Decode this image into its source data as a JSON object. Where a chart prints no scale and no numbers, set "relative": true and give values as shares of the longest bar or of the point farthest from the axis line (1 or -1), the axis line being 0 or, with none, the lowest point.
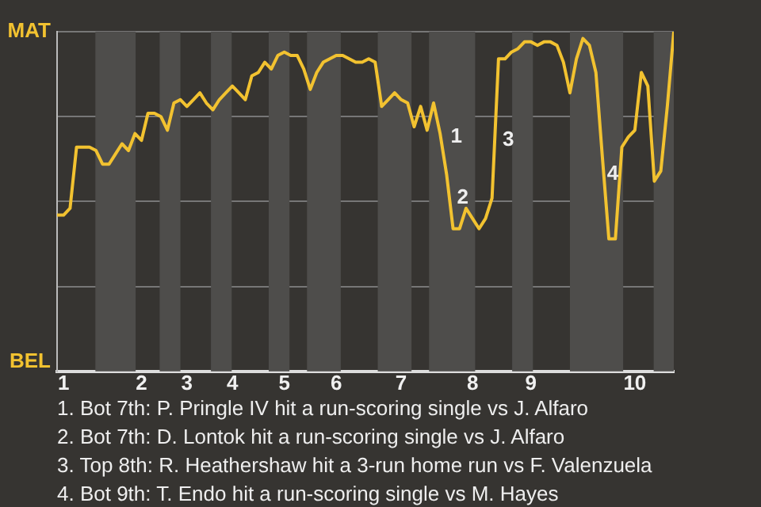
{
  "chart_data": {
    "type": "line",
    "relative": true,
    "categories": [
      null,
      "1",
      null,
      null,
      null,
      null,
      null,
      null,
      null,
      null,
      null,
      null,
      null,
      "2",
      null,
      null,
      null,
      null,
      null,
      null,
      "3",
      null,
      null,
      null,
      null,
      null,
      null,
      "4",
      null,
      null,
      null,
      null,
      null,
      null,
      null,
      "5",
      null,
      null,
      null,
      null,
      null,
      null,
      null,
      "6",
      null,
      null,
      null,
      null,
      null,
      null,
      null,
      null,
      null,
      "7",
      null,
      null,
      null,
      null,
      null,
      null,
      null,
      null,
      null,
      null,
      "8",
      null,
      null,
      null,
      null,
      null,
      null,
      null,
      null,
      "9",
      null,
      null,
      null,
      null,
      null,
      null,
      null,
      null,
      null,
      null,
      null,
      null,
      null,
      null,
      null,
      "10",
      null,
      null,
      null,
      null,
      null,
      null
    ],
    "series": [
      {
        "color": "#f2c230",
        "values": [
          0.46,
          0.46,
          0.48,
          0.66,
          0.66,
          0.66,
          0.65,
          0.61,
          0.61,
          0.64,
          0.67,
          0.65,
          0.7,
          0.68,
          0.76,
          0.76,
          0.75,
          0.71,
          0.79,
          0.8,
          0.78,
          0.8,
          0.82,
          0.79,
          0.77,
          0.8,
          0.82,
          0.84,
          0.82,
          0.8,
          0.87,
          0.88,
          0.91,
          0.89,
          0.93,
          0.94,
          0.93,
          0.93,
          0.89,
          0.83,
          0.88,
          0.91,
          0.92,
          0.93,
          0.93,
          0.92,
          0.91,
          0.91,
          0.92,
          0.91,
          0.78,
          0.8,
          0.82,
          0.8,
          0.79,
          0.72,
          0.78,
          0.71,
          0.79,
          0.7,
          0.58,
          0.42,
          0.42,
          0.48,
          0.45,
          0.42,
          0.45,
          0.51,
          0.92,
          0.92,
          0.94,
          0.95,
          0.97,
          0.97,
          0.96,
          0.97,
          0.97,
          0.96,
          0.91,
          0.82,
          0.92,
          0.98,
          0.96,
          0.88,
          0.63,
          0.39,
          0.39,
          0.66,
          0.69,
          0.71,
          0.88,
          0.84,
          0.56,
          0.59,
          0.78,
          1.0
        ]
      }
    ],
    "grid": "y",
    "marker": "none",
    "legend": false,
    "annotations": [
      "MAT",
      "BEL",
      "1",
      "2",
      "3",
      "4",
      "1. Bot 7th: P. Pringle IV hit a run-scoring single vs J. Alfaro",
      "2. Bot 7th: D. Lontok hit a run-scoring single vs J. Alfaro",
      "3. Top 8th: R. Heathershaw hit a 3-run home run vs F. Valenzuela",
      "4. Bot 9th: T. Endo hit a run-scoring single vs M. Hayes"
    ]
  }
}
